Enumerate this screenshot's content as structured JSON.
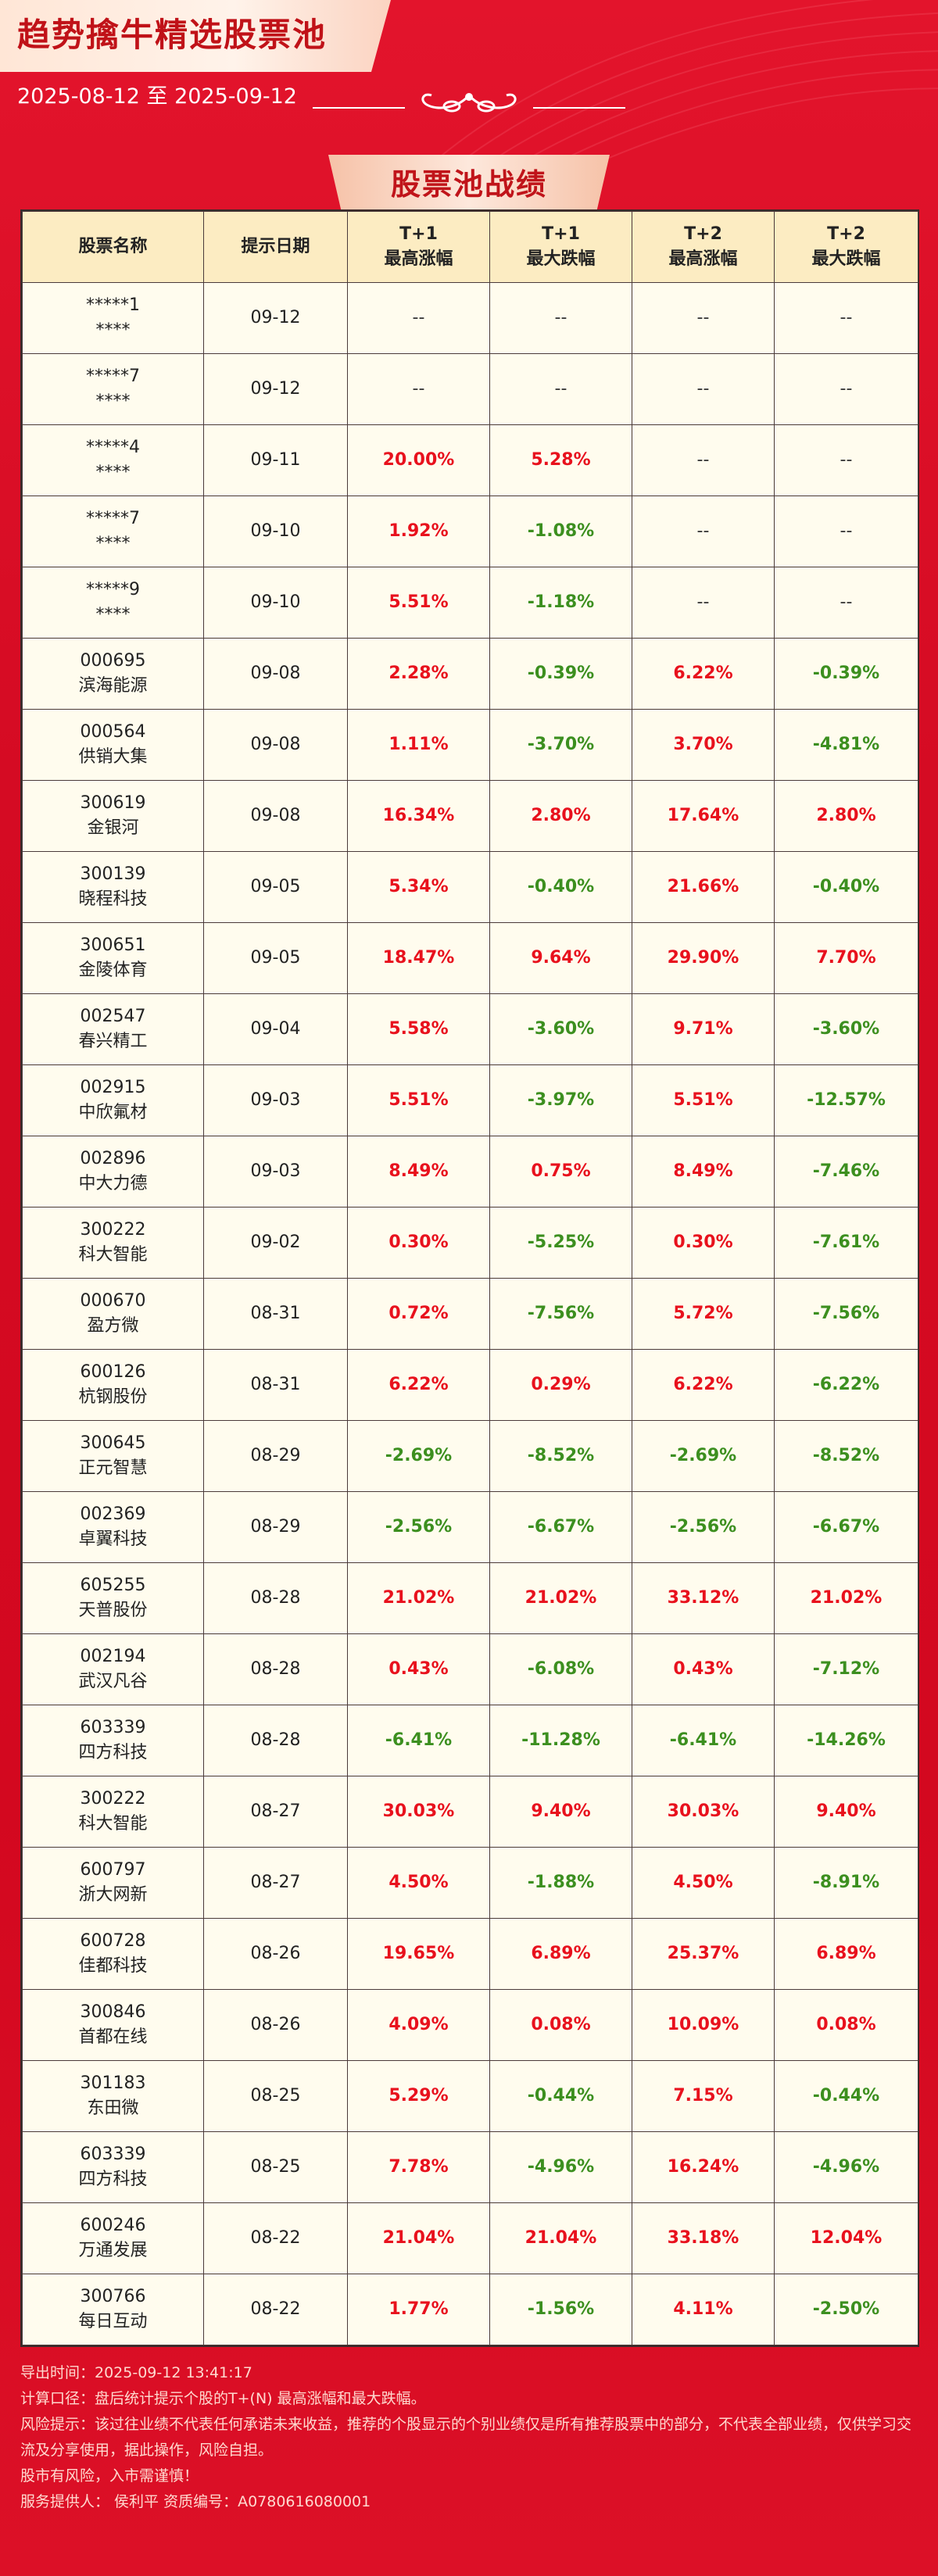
{
  "header": {
    "title": "趋势擒牛精选股票池",
    "date_range": "2025-08-12 至 2025-09-12"
  },
  "section": {
    "title": "股票池战绩"
  },
  "table": {
    "columns": [
      {
        "line1": "股票名称",
        "line2": ""
      },
      {
        "line1": "提示日期",
        "line2": ""
      },
      {
        "line1": "T+1",
        "line2": "最高涨幅"
      },
      {
        "line1": "T+1",
        "line2": "最大跌幅"
      },
      {
        "line1": "T+2",
        "line2": "最高涨幅"
      },
      {
        "line1": "T+2",
        "line2": "最大跌幅"
      }
    ],
    "rows": [
      {
        "code": "*****1",
        "name": "****",
        "date": "09-12",
        "t1_high": "--",
        "t1_low": "--",
        "t2_high": "--",
        "t2_low": "--"
      },
      {
        "code": "*****7",
        "name": "****",
        "date": "09-12",
        "t1_high": "--",
        "t1_low": "--",
        "t2_high": "--",
        "t2_low": "--"
      },
      {
        "code": "*****4",
        "name": "****",
        "date": "09-11",
        "t1_high": "20.00%",
        "t1_low": "5.28%",
        "t2_high": "--",
        "t2_low": "--"
      },
      {
        "code": "*****7",
        "name": "****",
        "date": "09-10",
        "t1_high": "1.92%",
        "t1_low": "-1.08%",
        "t2_high": "--",
        "t2_low": "--"
      },
      {
        "code": "*****9",
        "name": "****",
        "date": "09-10",
        "t1_high": "5.51%",
        "t1_low": "-1.18%",
        "t2_high": "--",
        "t2_low": "--"
      },
      {
        "code": "000695",
        "name": "滨海能源",
        "date": "09-08",
        "t1_high": "2.28%",
        "t1_low": "-0.39%",
        "t2_high": "6.22%",
        "t2_low": "-0.39%"
      },
      {
        "code": "000564",
        "name": "供销大集",
        "date": "09-08",
        "t1_high": "1.11%",
        "t1_low": "-3.70%",
        "t2_high": "3.70%",
        "t2_low": "-4.81%"
      },
      {
        "code": "300619",
        "name": "金银河",
        "date": "09-08",
        "t1_high": "16.34%",
        "t1_low": "2.80%",
        "t2_high": "17.64%",
        "t2_low": "2.80%"
      },
      {
        "code": "300139",
        "name": "晓程科技",
        "date": "09-05",
        "t1_high": "5.34%",
        "t1_low": "-0.40%",
        "t2_high": "21.66%",
        "t2_low": "-0.40%"
      },
      {
        "code": "300651",
        "name": "金陵体育",
        "date": "09-05",
        "t1_high": "18.47%",
        "t1_low": "9.64%",
        "t2_high": "29.90%",
        "t2_low": "7.70%"
      },
      {
        "code": "002547",
        "name": "春兴精工",
        "date": "09-04",
        "t1_high": "5.58%",
        "t1_low": "-3.60%",
        "t2_high": "9.71%",
        "t2_low": "-3.60%"
      },
      {
        "code": "002915",
        "name": "中欣氟材",
        "date": "09-03",
        "t1_high": "5.51%",
        "t1_low": "-3.97%",
        "t2_high": "5.51%",
        "t2_low": "-12.57%"
      },
      {
        "code": "002896",
        "name": "中大力德",
        "date": "09-03",
        "t1_high": "8.49%",
        "t1_low": "0.75%",
        "t2_high": "8.49%",
        "t2_low": "-7.46%"
      },
      {
        "code": "300222",
        "name": "科大智能",
        "date": "09-02",
        "t1_high": "0.30%",
        "t1_low": "-5.25%",
        "t2_high": "0.30%",
        "t2_low": "-7.61%"
      },
      {
        "code": "000670",
        "name": "盈方微",
        "date": "08-31",
        "t1_high": "0.72%",
        "t1_low": "-7.56%",
        "t2_high": "5.72%",
        "t2_low": "-7.56%"
      },
      {
        "code": "600126",
        "name": "杭钢股份",
        "date": "08-31",
        "t1_high": "6.22%",
        "t1_low": "0.29%",
        "t2_high": "6.22%",
        "t2_low": "-6.22%"
      },
      {
        "code": "300645",
        "name": "正元智慧",
        "date": "08-29",
        "t1_high": "-2.69%",
        "t1_low": "-8.52%",
        "t2_high": "-2.69%",
        "t2_low": "-8.52%"
      },
      {
        "code": "002369",
        "name": "卓翼科技",
        "date": "08-29",
        "t1_high": "-2.56%",
        "t1_low": "-6.67%",
        "t2_high": "-2.56%",
        "t2_low": "-6.67%"
      },
      {
        "code": "605255",
        "name": "天普股份",
        "date": "08-28",
        "t1_high": "21.02%",
        "t1_low": "21.02%",
        "t2_high": "33.12%",
        "t2_low": "21.02%"
      },
      {
        "code": "002194",
        "name": "武汉凡谷",
        "date": "08-28",
        "t1_high": "0.43%",
        "t1_low": "-6.08%",
        "t2_high": "0.43%",
        "t2_low": "-7.12%"
      },
      {
        "code": "603339",
        "name": "四方科技",
        "date": "08-28",
        "t1_high": "-6.41%",
        "t1_low": "-11.28%",
        "t2_high": "-6.41%",
        "t2_low": "-14.26%"
      },
      {
        "code": "300222",
        "name": "科大智能",
        "date": "08-27",
        "t1_high": "30.03%",
        "t1_low": "9.40%",
        "t2_high": "30.03%",
        "t2_low": "9.40%"
      },
      {
        "code": "600797",
        "name": "浙大网新",
        "date": "08-27",
        "t1_high": "4.50%",
        "t1_low": "-1.88%",
        "t2_high": "4.50%",
        "t2_low": "-8.91%"
      },
      {
        "code": "600728",
        "name": "佳都科技",
        "date": "08-26",
        "t1_high": "19.65%",
        "t1_low": "6.89%",
        "t2_high": "25.37%",
        "t2_low": "6.89%"
      },
      {
        "code": "300846",
        "name": "首都在线",
        "date": "08-26",
        "t1_high": "4.09%",
        "t1_low": "0.08%",
        "t2_high": "10.09%",
        "t2_low": "0.08%"
      },
      {
        "code": "301183",
        "name": "东田微",
        "date": "08-25",
        "t1_high": "5.29%",
        "t1_low": "-0.44%",
        "t2_high": "7.15%",
        "t2_low": "-0.44%"
      },
      {
        "code": "603339",
        "name": "四方科技",
        "date": "08-25",
        "t1_high": "7.78%",
        "t1_low": "-4.96%",
        "t2_high": "16.24%",
        "t2_low": "-4.96%"
      },
      {
        "code": "600246",
        "name": "万通发展",
        "date": "08-22",
        "t1_high": "21.04%",
        "t1_low": "21.04%",
        "t2_high": "33.18%",
        "t2_low": "12.04%"
      },
      {
        "code": "300766",
        "name": "每日互动",
        "date": "08-22",
        "t1_high": "1.77%",
        "t1_low": "-1.56%",
        "t2_high": "4.11%",
        "t2_low": "-2.50%"
      }
    ]
  },
  "footer": {
    "export_time": "导出时间：2025-09-12 13:41:17",
    "calc_method": "计算口径：盘后统计提示个股的T+(N) 最高涨幅和最大跌幅。",
    "risk_note": "风险提示：该过往业绩不代表任何承诺未来收益，推荐的个股显示的个别业绩仅是所有推荐股票中的部分，不代表全部业绩，仅供学习交流及分享使用，据此操作，风险自担。",
    "market_risk": "股市有风险，入市需谨慎！",
    "provider": "服务提供人：  侯利平    资质编号：A0780616080001"
  },
  "colors": {
    "background": "#d80c24",
    "up": "#e8111d",
    "down": "#3c8f1f",
    "table_header": "#fcecc2",
    "table_body": "#fffcee"
  }
}
